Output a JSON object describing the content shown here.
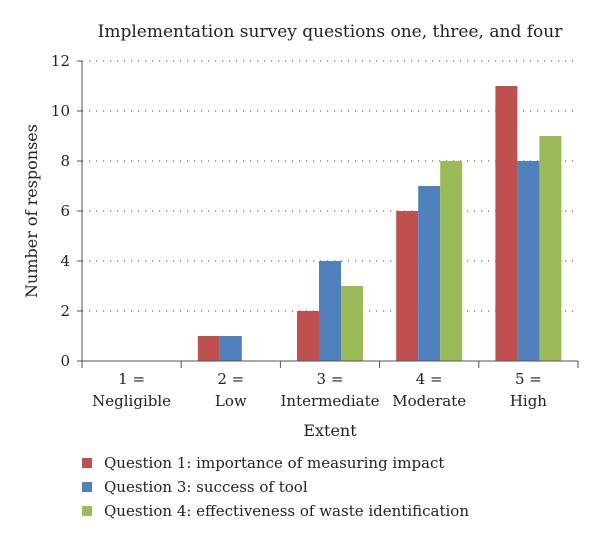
{
  "chart_data": {
    "type": "bar",
    "title": "Implementation survey questions one, three, and four",
    "xlabel": "Extent",
    "ylabel": "Number of responses",
    "categories": [
      [
        "1 =",
        "Negligible"
      ],
      [
        "2 =",
        "Low"
      ],
      [
        "3 =",
        "Intermediate"
      ],
      [
        "4 =",
        "Moderate"
      ],
      [
        "5 =",
        "High"
      ]
    ],
    "ylim": [
      0,
      12
    ],
    "yticks": [
      0,
      2,
      4,
      6,
      8,
      10,
      12
    ],
    "grid": "horizontal dotted",
    "legend": "bottom",
    "series": [
      {
        "name": "Question 1: importance of measuring impact",
        "color": "#c0504d",
        "values": [
          0,
          1,
          2,
          6,
          11
        ]
      },
      {
        "name": "Question 3: success of tool",
        "color": "#4f81bd",
        "values": [
          0,
          1,
          4,
          7,
          8
        ]
      },
      {
        "name": "Question 4: effectiveness of waste identification",
        "color": "#9bbb59",
        "values": [
          0,
          0,
          3,
          8,
          9
        ]
      }
    ]
  }
}
